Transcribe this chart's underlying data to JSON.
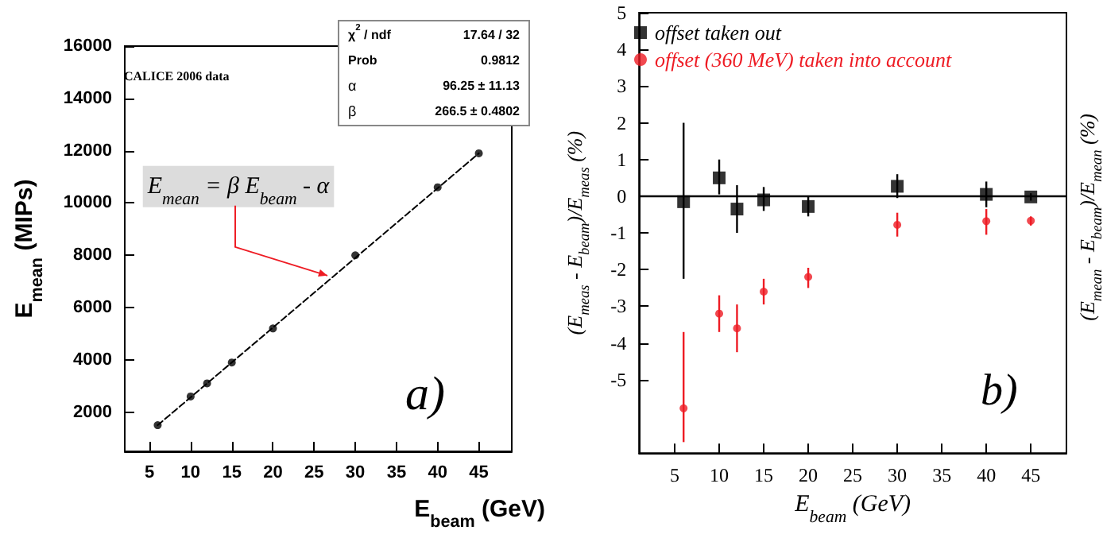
{
  "chart_data": [
    {
      "type": "scatter",
      "xlabel": "E$_{beam}$ (GeV)",
      "ylabel": "E$_{mean}$ (MIPs)",
      "xlim": [
        2,
        49
      ],
      "ylim": [
        500,
        16000
      ],
      "xticks": [
        5,
        10,
        15,
        20,
        25,
        30,
        35,
        40,
        45
      ],
      "yticks": [
        2000,
        4000,
        6000,
        8000,
        10000,
        12000,
        14000,
        16000
      ],
      "grid": false,
      "legend": false,
      "series": [
        {
          "color": "#000000",
          "marker": "circle",
          "x": [
            6,
            10,
            12,
            15,
            20,
            30,
            40,
            45
          ],
          "values": [
            1500,
            2600,
            3100,
            3900,
            5200,
            8000,
            10600,
            11900
          ]
        },
        {
          "type": "line",
          "color": "#000000",
          "marker": "none",
          "line_style": "dashed",
          "x": [
            6,
            45
          ],
          "values": [
            1500,
            11900
          ]
        }
      ],
      "annotations": [
        "CALICE 2006 data",
        {
          "text": "E$_{mean}$ = β E$_{beam}$ - α",
          "x": 27,
          "y": 7100
        },
        "a)",
        "χ$^{2}$ / ndf",
        "17.64 / 32",
        "Prob",
        "0.9812",
        "α",
        "96.25 ± 11.13",
        "β",
        "266.5 ± 0.4802"
      ]
    },
    {
      "type": "scatter",
      "xlabel": "E$_{beam}$ (GeV)",
      "ylabel": "(E$_{meas}$ - E$_{beam}$)/E$_{meas}$ (%)",
      "y2label": "(E$_{mean}$ - E$_{beam}$)/E$_{mean}$ (%)",
      "xlim": [
        1,
        49
      ],
      "ylim": [
        -7,
        5
      ],
      "xticks": [
        5,
        10,
        15,
        20,
        25,
        30,
        35,
        40,
        45
      ],
      "yticks": [
        -5,
        -4,
        -3,
        -2,
        -1,
        0,
        1,
        2,
        3,
        4,
        5
      ],
      "grid": false,
      "legend": "top left",
      "x": [
        6,
        10,
        12,
        15,
        20,
        30,
        40,
        45
      ],
      "series": [
        {
          "name": "offset taken out",
          "color": "#000000",
          "marker": "square",
          "values": [
            -0.15,
            0.5,
            -0.35,
            -0.1,
            -0.28,
            0.27,
            0.05,
            -0.02
          ],
          "errors": [
            [
              -2.25,
              2.0
            ],
            [
              0.05,
              1.0
            ],
            [
              -1.0,
              0.3
            ],
            [
              -0.4,
              0.25
            ],
            [
              -0.55,
              0.0
            ],
            [
              -0.05,
              0.6
            ],
            [
              -0.3,
              0.4
            ],
            [
              -0.12,
              0.08
            ]
          ]
        },
        {
          "name": "offset (360 MeV) taken into account",
          "color": "#ee1c24",
          "marker": "circle",
          "values": [
            -5.78,
            -3.2,
            -3.6,
            -2.6,
            -2.2,
            -0.78,
            -0.68,
            -0.67
          ],
          "errors": [
            [
              -6.7,
              -3.7
            ],
            [
              -3.7,
              -2.7
            ],
            [
              -4.25,
              -2.95
            ],
            [
              -2.95,
              -2.25
            ],
            [
              -2.5,
              -1.95
            ],
            [
              -1.1,
              -0.45
            ],
            [
              -1.05,
              -0.35
            ],
            [
              -0.8,
              -0.55
            ]
          ]
        }
      ],
      "ref_lines": [
        {
          "axis": "y",
          "value": 0,
          "color": "#000000",
          "line_style": "solid"
        }
      ],
      "annotations": [
        "b)"
      ]
    }
  ]
}
